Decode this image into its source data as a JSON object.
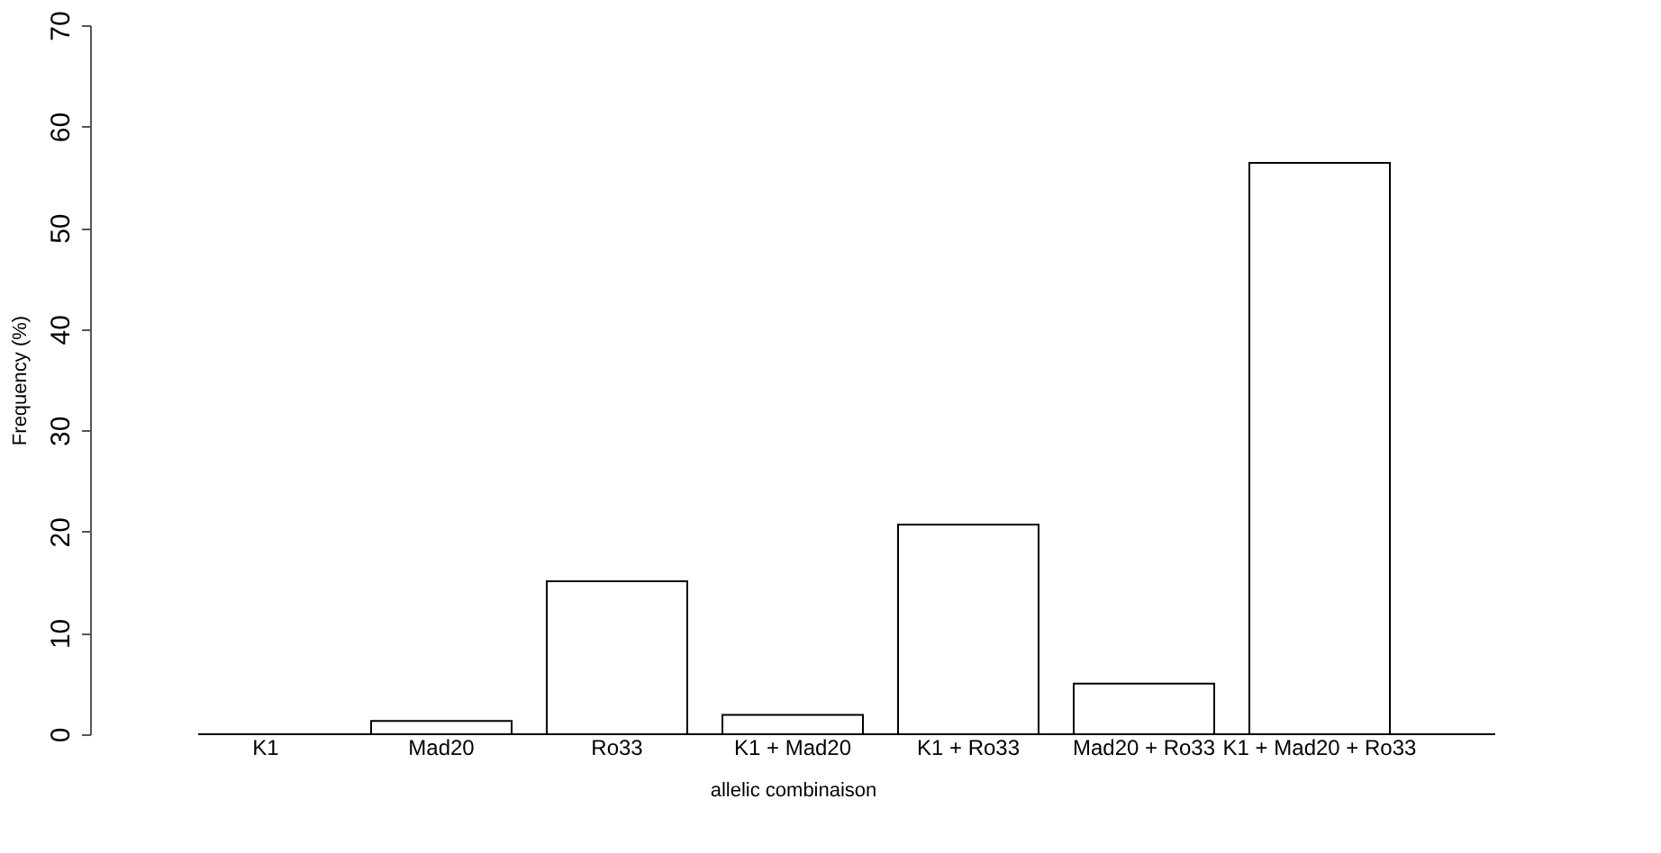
{
  "chart_data": {
    "type": "bar",
    "xlabel": "allelic combinaison",
    "ylabel": "Frequency (%)",
    "categories": [
      "K1",
      "Mad20",
      "Ro33",
      "K1 + Mad20",
      "K1 + Ro33",
      "Mad20 + Ro33",
      "K1 + Mad20 + Ro33"
    ],
    "values": [
      0,
      1.3,
      15.1,
      1.9,
      20.7,
      5.0,
      56.4
    ],
    "color": "#ffffff",
    "ylim": [
      0,
      70
    ],
    "yticks": [
      0,
      10,
      20,
      30,
      40,
      50,
      60,
      70
    ],
    "grid": false
  }
}
